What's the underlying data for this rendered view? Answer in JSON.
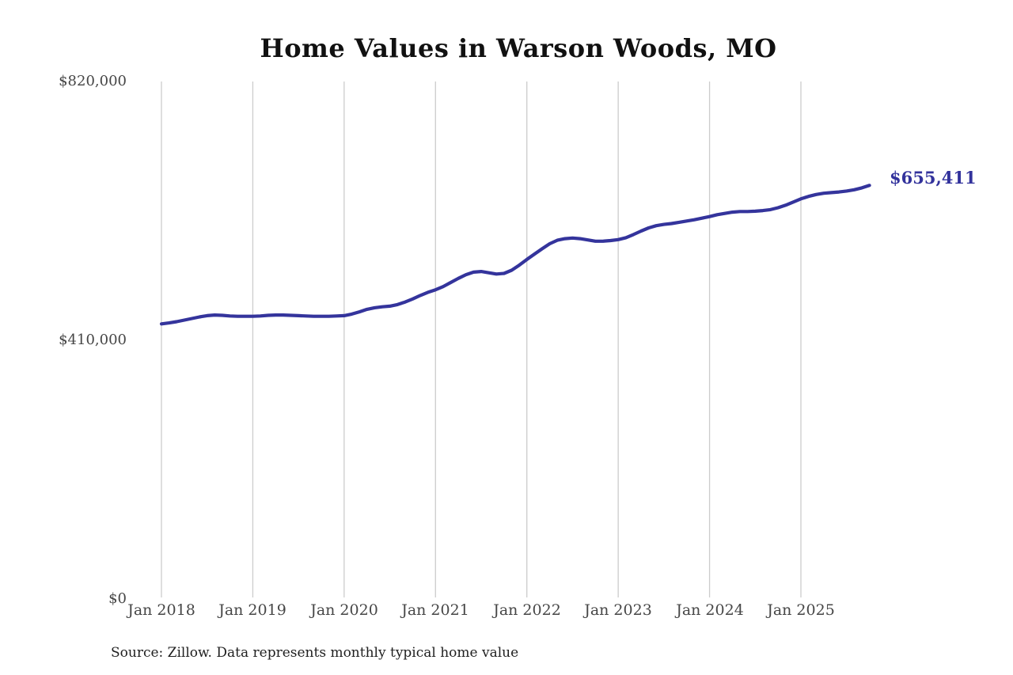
{
  "source_note": "Source: Zillow. Data represents monthly typical home value",
  "chart_data": {
    "type": "line",
    "title": "Home Values in Warson Woods, MO",
    "series_name": "Monthly typical home value",
    "x_start": "Jan 2018",
    "x_freq": "monthly",
    "values": [
      436000,
      437500,
      439500,
      442000,
      444500,
      447000,
      449000,
      450000,
      449500,
      448500,
      448000,
      448000,
      448000,
      448500,
      449500,
      450000,
      450000,
      449500,
      449000,
      448500,
      448000,
      448000,
      448000,
      448500,
      449000,
      451500,
      455000,
      459000,
      461500,
      463000,
      464000,
      466500,
      470500,
      475500,
      481000,
      486000,
      490000,
      495000,
      501500,
      508000,
      514000,
      518000,
      519000,
      517000,
      515000,
      516000,
      521000,
      529000,
      538000,
      546500,
      555000,
      563000,
      568500,
      571000,
      572000,
      571000,
      569000,
      567000,
      567000,
      568000,
      569500,
      572500,
      577500,
      583000,
      588000,
      591500,
      593500,
      595000,
      597000,
      599000,
      601000,
      603500,
      606000,
      609000,
      611000,
      613000,
      614000,
      614000,
      614500,
      615500,
      617000,
      620000,
      624000,
      629000,
      634000,
      638000,
      641000,
      643000,
      644000,
      645000,
      646500,
      648500,
      651500,
      655411
    ],
    "last_value": 655411,
    "end_label": "$655,411",
    "ylim": [
      0,
      820000
    ],
    "yticks": [
      {
        "value": 820000,
        "label": "$820,000"
      },
      {
        "value": 410000,
        "label": "$410,000"
      },
      {
        "value": 0,
        "label": "$0"
      }
    ],
    "xticks": [
      {
        "label": "Jan 2018"
      },
      {
        "label": "Jan 2019"
      },
      {
        "label": "Jan 2020"
      },
      {
        "label": "Jan 2021"
      },
      {
        "label": "Jan 2022"
      },
      {
        "label": "Jan 2023"
      },
      {
        "label": "Jan 2024"
      },
      {
        "label": "Jan 2025"
      }
    ],
    "grid": "vertical-only",
    "legend_position": "none",
    "line_color": "#34349c",
    "end_label_color": "#32329c",
    "gridline_color": "#cccccc"
  }
}
